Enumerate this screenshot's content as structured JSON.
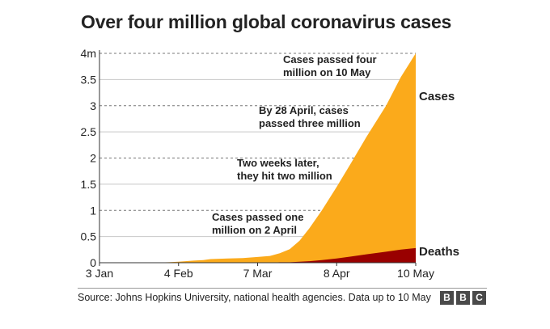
{
  "title": "Over four million global coronavirus cases",
  "source": "Source: Johns Hopkins University, national health agencies. Data up to 10 May",
  "logo": {
    "letters": [
      "B",
      "B",
      "C"
    ]
  },
  "colors": {
    "cases": "#fbaa1b",
    "deaths": "#990000",
    "grid": "#aaaaaa",
    "axis": "#333333"
  },
  "chart_data": {
    "type": "area",
    "title": "Over four million global coronavirus cases",
    "xlabel": "",
    "ylabel": "",
    "x": [
      "2020-01-03",
      "2020-01-10",
      "2020-01-17",
      "2020-01-24",
      "2020-01-31",
      "2020-02-04",
      "2020-02-10",
      "2020-02-14",
      "2020-02-17",
      "2020-02-24",
      "2020-03-01",
      "2020-03-07",
      "2020-03-12",
      "2020-03-16",
      "2020-03-20",
      "2020-03-24",
      "2020-03-28",
      "2020-04-02",
      "2020-04-08",
      "2020-04-14",
      "2020-04-20",
      "2020-04-28",
      "2020-05-04",
      "2020-05-10"
    ],
    "series": [
      {
        "name": "Cases",
        "values": [
          0.0,
          0.0,
          0.0,
          0.0,
          0.01,
          0.02,
          0.04,
          0.05,
          0.07,
          0.08,
          0.09,
          0.11,
          0.13,
          0.18,
          0.26,
          0.42,
          0.66,
          1.0,
          1.45,
          1.92,
          2.4,
          3.0,
          3.55,
          4.0
        ]
      },
      {
        "name": "Deaths",
        "values": [
          0.0,
          0.0,
          0.0,
          0.0,
          0.0,
          0.0,
          0.0,
          0.0,
          0.0,
          0.0,
          0.0,
          0.0,
          0.0,
          0.01,
          0.01,
          0.02,
          0.03,
          0.05,
          0.08,
          0.12,
          0.16,
          0.21,
          0.25,
          0.28
        ]
      }
    ],
    "x_ticks": [
      {
        "date": "2020-01-03",
        "label": "3 Jan"
      },
      {
        "date": "2020-02-04",
        "label": "4 Feb"
      },
      {
        "date": "2020-03-07",
        "label": "7 Mar"
      },
      {
        "date": "2020-04-08",
        "label": "8 Apr"
      },
      {
        "date": "2020-05-10",
        "label": "10 May"
      }
    ],
    "y_ticks": [
      {
        "value": 0,
        "label": "0"
      },
      {
        "value": 0.5,
        "label": "0.5"
      },
      {
        "value": 1,
        "label": "1"
      },
      {
        "value": 1.5,
        "label": "1.5"
      },
      {
        "value": 2,
        "label": "2"
      },
      {
        "value": 2.5,
        "label": "2.5"
      },
      {
        "value": 3,
        "label": "3"
      },
      {
        "value": 3.5,
        "label": "3.5"
      },
      {
        "value": 4,
        "label": "4m"
      }
    ],
    "ylim": [
      0,
      4
    ],
    "xlim": [
      "2020-01-03",
      "2020-05-10"
    ],
    "dashed_gridlines_at": [
      1,
      2,
      3,
      4
    ],
    "grid": true,
    "series_labels": [
      {
        "text": "Cases",
        "y": 3.1
      },
      {
        "text": "Deaths",
        "y": 0.2
      }
    ],
    "annotations": [
      {
        "lines": [
          "Cases passed four",
          "million on 10 May"
        ]
      },
      {
        "lines": [
          "By 28 April, cases",
          "passed three million"
        ]
      },
      {
        "lines": [
          "Two weeks later,",
          "they hit two million"
        ]
      },
      {
        "lines": [
          "Cases passed one",
          "million on 2 April"
        ]
      }
    ]
  }
}
